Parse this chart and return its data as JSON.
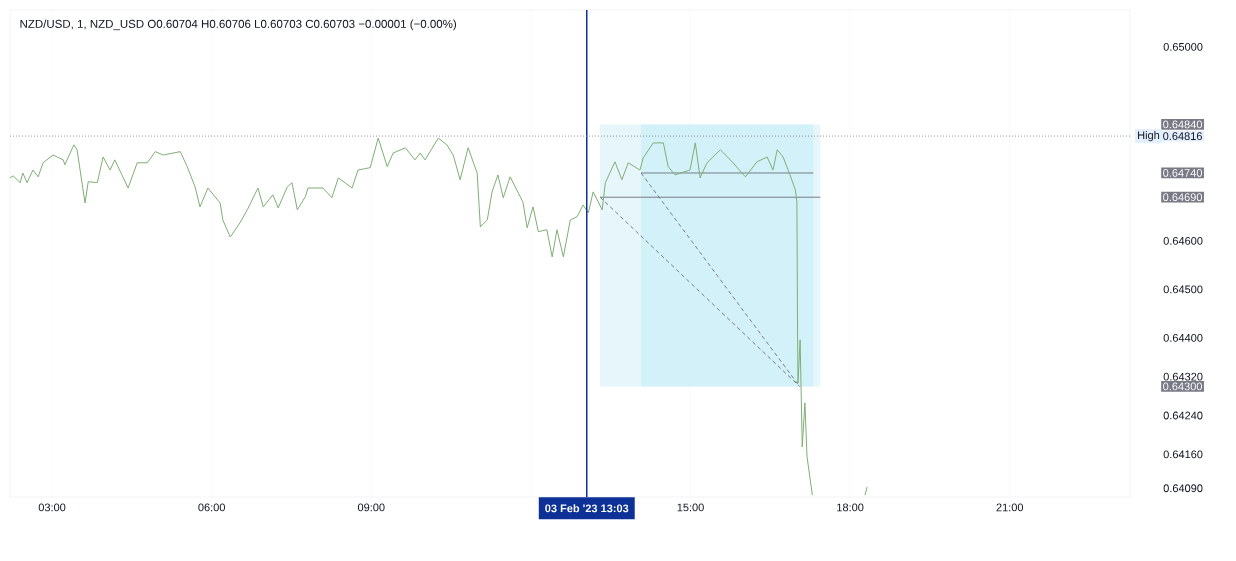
{
  "chart_data": {
    "type": "line",
    "title": "NZD/USD, 1, NZD_USD  O0.60704  H0.60706  L0.60703  C0.60703  −0.00001 (−0.00%)",
    "xlim": [
      2.21,
      23.26
    ],
    "ylim": [
      0.64072,
      0.65076
    ],
    "xticks": [
      {
        "value": 3,
        "label": "03:00"
      },
      {
        "value": 6,
        "label": "06:00"
      },
      {
        "value": 9,
        "label": "09:00"
      },
      {
        "value": 12,
        "label": null
      },
      {
        "value": 15,
        "label": "15:00"
      },
      {
        "value": 18,
        "label": "18:00"
      },
      {
        "value": 21,
        "label": "21:00"
      }
    ],
    "yticks": [
      {
        "value": 0.65,
        "label": "0.65000"
      },
      {
        "value": 0.6484,
        "label": "0.64840"
      },
      {
        "value": 0.64816,
        "label": "0.64816"
      },
      {
        "value": 0.6474,
        "label": "0.64740"
      },
      {
        "value": 0.6469,
        "label": "0.64690"
      },
      {
        "value": 0.646,
        "label": "0.64600"
      },
      {
        "value": 0.645,
        "label": "0.64500"
      },
      {
        "value": 0.644,
        "label": "0.64400"
      },
      {
        "value": 0.6432,
        "label": "0.64320"
      },
      {
        "value": 0.643,
        "label": "0.64300"
      },
      {
        "value": 0.6424,
        "label": "0.64240"
      },
      {
        "value": 0.6416,
        "label": "0.64160"
      },
      {
        "value": 0.6409,
        "label": "0.64090"
      }
    ],
    "grid": "x",
    "series": [
      {
        "type": "line",
        "color": "#787b86",
        "x": [
          13.3,
          17.44
        ],
        "values": [
          0.6469,
          0.6469
        ],
        "upper": [
          0.6484,
          0.6484
        ],
        "lower": [
          0.643,
          0.643
        ]
      },
      {
        "type": "line",
        "color": "#787b86",
        "x": [
          14.07,
          17.31
        ],
        "values": [
          0.6474,
          0.6474
        ],
        "upper": [
          0.6484,
          0.6484
        ],
        "lower": [
          0.643,
          0.643
        ]
      },
      {
        "type": "line",
        "color": "#787b86",
        "line_style": "dashed",
        "x": [
          13.3,
          17.05
        ],
        "values": [
          0.6469,
          0.643
        ]
      },
      {
        "type": "line",
        "color": "#787b86",
        "line_style": "dashed",
        "x": [
          14.07,
          17.05
        ],
        "values": [
          0.6474,
          0.643
        ]
      },
      {
        "color": "#7fae74",
        "x": [
          2.21,
          2.27,
          2.4,
          2.45,
          2.53,
          2.64,
          2.74,
          2.83,
          3.02,
          3.21,
          3.24,
          3.41,
          3.47,
          3.62,
          3.68,
          3.85,
          3.96,
          4.09,
          4.18,
          4.43,
          4.6,
          4.79,
          4.94,
          5.09,
          5.41,
          5.54,
          5.69,
          5.78,
          5.93,
          6.16,
          6.21,
          6.35,
          6.53,
          6.67,
          6.87,
          6.97,
          7.15,
          7.25,
          7.42,
          7.51,
          7.61,
          7.76,
          7.81,
          8.09,
          8.26,
          8.38,
          8.64,
          8.75,
          8.98,
          9.13,
          9.22,
          9.3,
          9.41,
          9.64,
          9.82,
          9.92,
          10.01,
          10.26,
          10.42,
          10.54,
          10.67,
          10.82,
          10.99,
          11.05,
          11.18,
          11.27,
          11.38,
          11.48,
          11.61,
          11.85,
          11.93,
          12.04,
          12.14,
          12.3,
          12.4,
          12.49,
          12.61,
          12.74,
          12.87,
          12.98,
          13.08,
          13.17,
          13.34,
          13.4,
          13.58,
          13.71,
          13.83,
          14.05,
          14.11,
          14.3,
          14.49,
          14.58,
          14.71,
          14.99,
          15.09,
          15.18,
          15.31,
          15.56,
          15.8,
          16.03,
          16.25,
          16.44,
          16.55,
          16.63,
          16.74,
          16.87,
          16.97,
          17.0,
          17.01,
          17.02,
          17.06,
          17.1,
          17.15,
          17.19,
          17.29,
          17.8,
          18.28,
          18.32
        ],
        "values": [
          0.6473,
          0.64734,
          0.6472,
          0.6474,
          0.6472,
          0.64746,
          0.64732,
          0.64761,
          0.64777,
          0.64767,
          0.64757,
          0.64798,
          0.64788,
          0.64678,
          0.64722,
          0.6472,
          0.64773,
          0.64746,
          0.64767,
          0.64709,
          0.64761,
          0.64761,
          0.64784,
          0.64777,
          0.64784,
          0.64753,
          0.64711,
          0.6467,
          0.64709,
          0.64678,
          0.64643,
          0.64608,
          0.64637,
          0.64664,
          0.64709,
          0.6467,
          0.64695,
          0.64668,
          0.64711,
          0.6472,
          0.64664,
          0.64691,
          0.64709,
          0.64709,
          0.64689,
          0.6473,
          0.64709,
          0.64746,
          0.64751,
          0.64812,
          0.64781,
          0.64753,
          0.64781,
          0.64792,
          0.64767,
          0.64781,
          0.64767,
          0.64812,
          0.64798,
          0.64777,
          0.64726,
          0.64792,
          0.6474,
          0.64629,
          0.64643,
          0.64701,
          0.64736,
          0.64689,
          0.64732,
          0.6468,
          0.64627,
          0.6467,
          0.64619,
          0.64623,
          0.64567,
          0.64623,
          0.64567,
          0.64643,
          0.6465,
          0.64674,
          0.64658,
          0.64701,
          0.64664,
          0.6472,
          0.64763,
          0.64726,
          0.64761,
          0.64746,
          0.64771,
          0.64802,
          0.64802,
          0.64753,
          0.64736,
          0.64746,
          0.64802,
          0.6473,
          0.64761,
          0.64788,
          0.64761,
          0.64732,
          0.64763,
          0.64773,
          0.64746,
          0.64788,
          0.64773,
          0.64736,
          0.64705,
          0.6468,
          0.64443,
          0.64307,
          0.64396,
          0.64175,
          0.64266,
          0.64155,
          0.64076,
          null,
          0.64076,
          0.64093
        ]
      }
    ],
    "ref_lines": [
      {
        "axis": "x",
        "value": 13.05,
        "label": "03 Feb '23  13:03",
        "color": "#0d3197",
        "line_style": "solid"
      },
      {
        "axis": "y",
        "value": 0.64816,
        "label": "High",
        "color": "#787b86",
        "line_style": "dotted"
      }
    ]
  }
}
